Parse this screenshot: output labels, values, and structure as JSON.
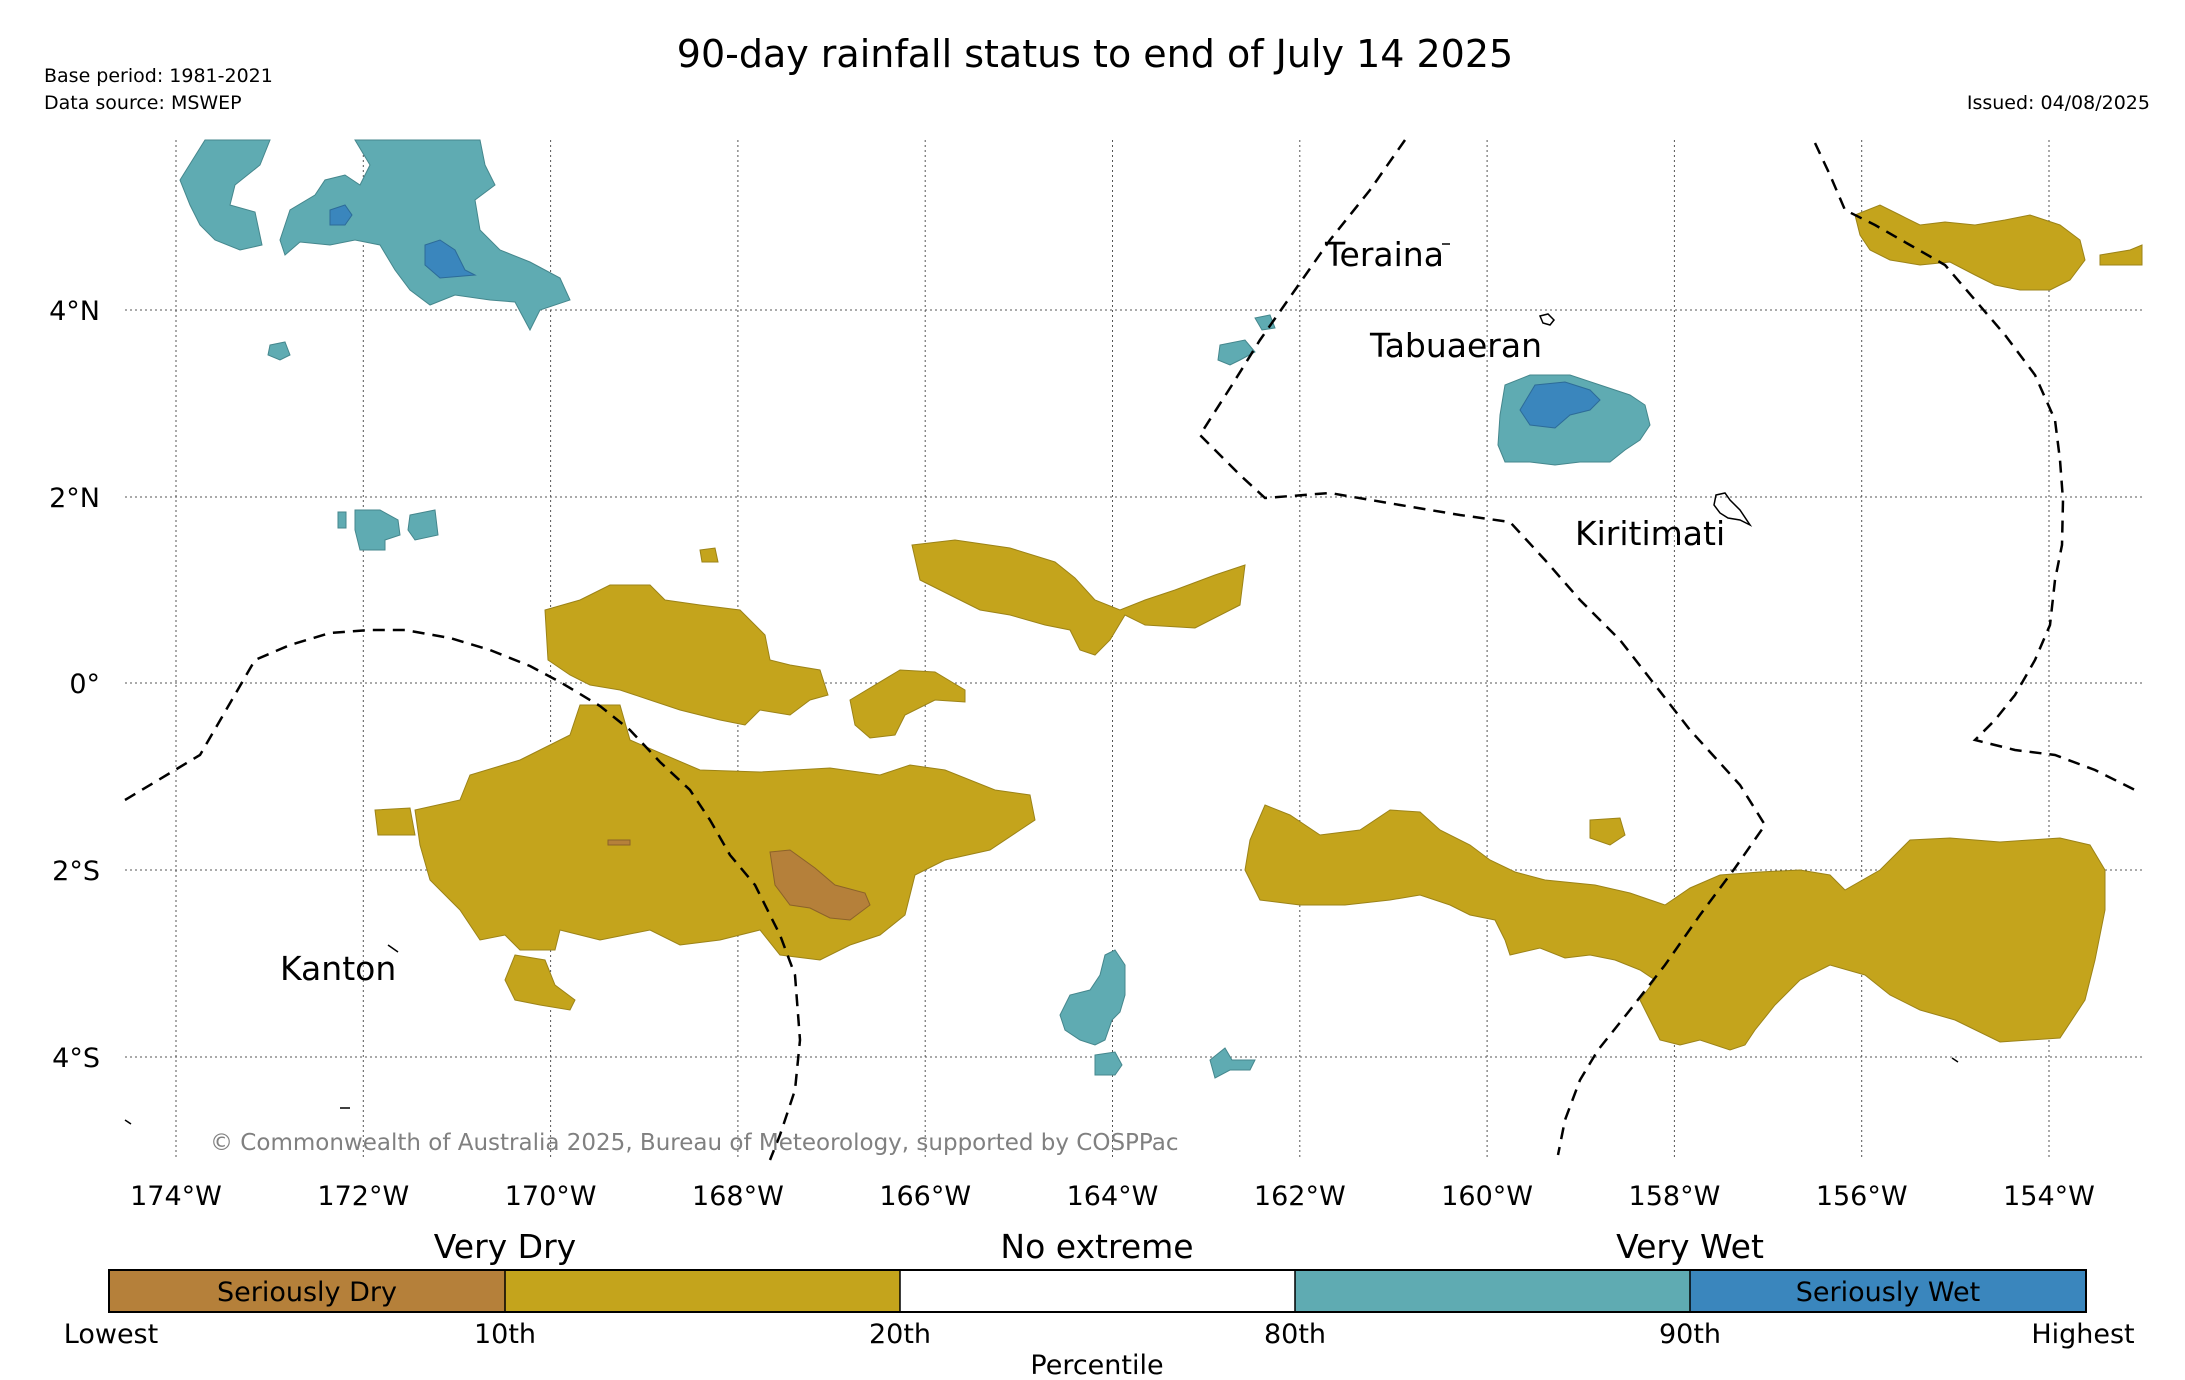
{
  "title": "90-day rainfall status to end of July 14 2025",
  "base_period": "Base period: 1981-2021",
  "data_source": "Data source: MSWEP",
  "issued": "Issued: 04/08/2025",
  "copyright": "© Commonwealth of Australia 2025, Bureau of Meteorology, supported by COSPPac",
  "colors": {
    "seriously_dry": "#b5803a",
    "very_dry": "#c4a41c",
    "very_wet": "#5fabb2",
    "seriously_wet": "#3a86bd",
    "grid": "#555555"
  },
  "axes": {
    "lon_labels": [
      "174°W",
      "172°W",
      "170°W",
      "168°W",
      "166°W",
      "164°W",
      "162°W",
      "160°W",
      "158°W",
      "156°W",
      "154°W"
    ],
    "lat_labels": [
      "4°N",
      "2°N",
      "0°",
      "2°S",
      "4°S"
    ],
    "lon_range": [
      -174.5,
      -153.0
    ],
    "lat_range": [
      -4.7,
      5.8
    ]
  },
  "places": {
    "teraina": "Teraina",
    "tabuaeran": "Tabuaeran",
    "kiritimati": "Kiritimati",
    "kanton": "Kanton"
  },
  "legend": {
    "head_very_dry": "Very Dry",
    "head_no_extreme": "No extreme",
    "head_very_wet": "Very Wet",
    "seriously_dry": "Seriously Dry",
    "seriously_wet": "Seriously Wet",
    "ticks": [
      "Lowest",
      "10th",
      "20th",
      "80th",
      "90th",
      "Highest"
    ],
    "axis_label": "Percentile"
  }
}
